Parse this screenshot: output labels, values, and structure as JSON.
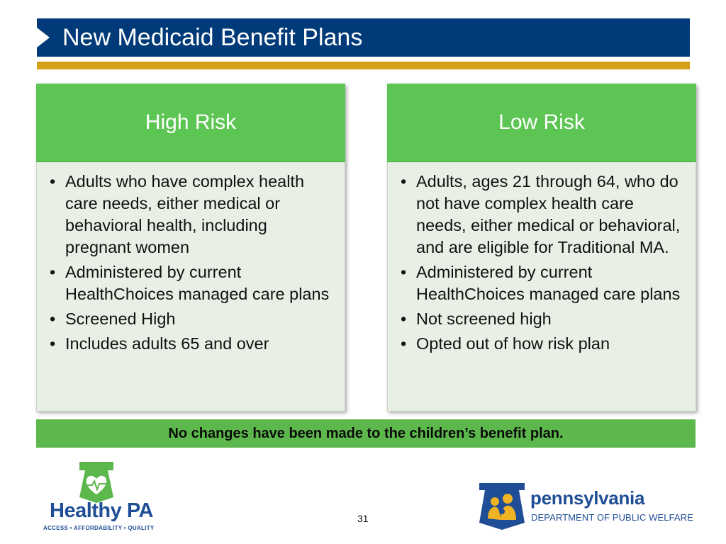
{
  "slide": {
    "title": "New Medicaid Benefit Plans",
    "page_number": "31"
  },
  "colors": {
    "title_bar": "#003a78",
    "accent_gold": "#d4a017",
    "card_header": "#5cc553",
    "card_body": "#e8f0e6",
    "notice_bar": "#5cb84c"
  },
  "cards": [
    {
      "heading": "High Risk",
      "bullets": [
        "Adults who have complex health care needs, either medical or behavioral health, including pregnant women",
        "Administered by current HealthChoices managed care plans",
        "Screened High",
        "Includes adults 65 and over"
      ]
    },
    {
      "heading": "Low Risk",
      "bullets": [
        "Adults, ages 21 through 64, who do not have complex health care needs, either medical or behavioral, and are eligible for Traditional MA.",
        "Administered by current HealthChoices managed care plans",
        "Not screened high",
        "Opted out of how risk plan"
      ]
    }
  ],
  "bullet_symbol": "•",
  "notice": "No changes have been made to the children’s benefit plan.",
  "logos": {
    "healthy_pa": {
      "name": "Healthy PA",
      "tagline": "ACCESS • AFFORDABILITY • QUALITY",
      "icon": "keystone-heart-icon"
    },
    "pennsylvania": {
      "name": "pennsylvania",
      "department": "DEPARTMENT OF PUBLIC WELFARE",
      "icon": "keystone-family-icon"
    }
  }
}
